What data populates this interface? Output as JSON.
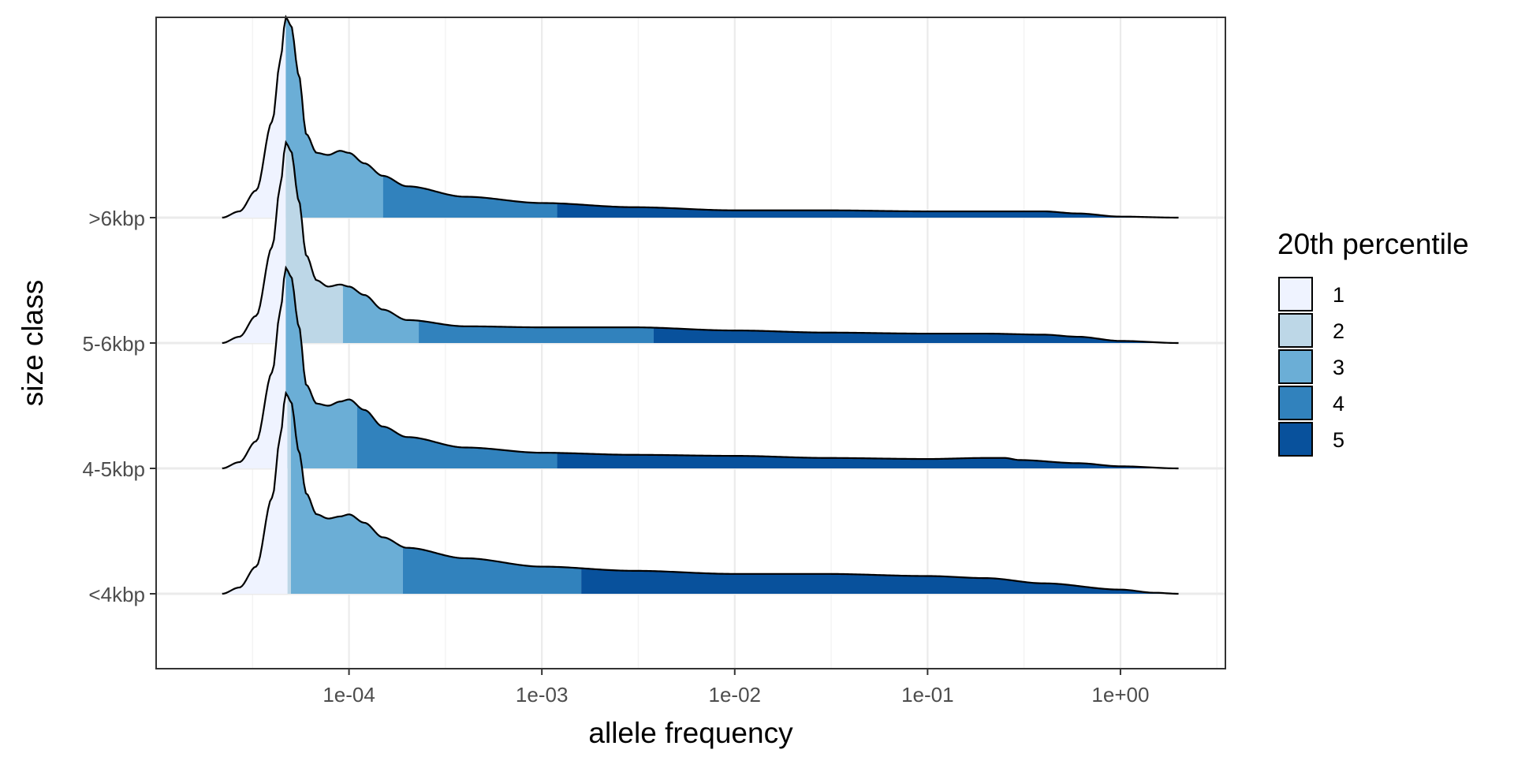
{
  "chart_data": {
    "type": "ridgeline-density",
    "title": "",
    "xlabel": "allele frequency",
    "ylabel": "size class",
    "x_scale": "log10",
    "x_ticks": [
      {
        "value": 0.0001,
        "label": "1e-04"
      },
      {
        "value": 0.001,
        "label": "1e-03"
      },
      {
        "value": 0.01,
        "label": "1e-02"
      },
      {
        "value": 0.1,
        "label": "1e-01"
      },
      {
        "value": 1,
        "label": "1e+00"
      }
    ],
    "xlim": [
      1e-05,
      3.5
    ],
    "grid": true,
    "legend": {
      "title": "20th percentile",
      "placement": "right",
      "entries": [
        {
          "label": "1",
          "color": "#eff3ff"
        },
        {
          "label": "2",
          "color": "#bdd7e7"
        },
        {
          "label": "3",
          "color": "#6baed6"
        },
        {
          "label": "4",
          "color": "#3182bd"
        },
        {
          "label": "5",
          "color": "#08519c"
        }
      ]
    },
    "categories": [
      "<4kbp",
      "4-5kbp",
      "5-6kbp",
      ">6kbp"
    ],
    "series": [
      {
        "name": "<4kbp",
        "density_points": [
          [
            2.2e-05,
            0.0
          ],
          [
            2.7e-05,
            0.03
          ],
          [
            3.3e-05,
            0.13
          ],
          [
            4e-05,
            0.46
          ],
          [
            4.4e-05,
            0.75
          ],
          [
            4.7e-05,
            0.96
          ],
          [
            5e-05,
            0.92
          ],
          [
            5.5e-05,
            0.68
          ],
          [
            6e-05,
            0.48
          ],
          [
            6.8e-05,
            0.38
          ],
          [
            7.8e-05,
            0.36
          ],
          [
            9e-05,
            0.37
          ],
          [
            0.0001,
            0.38
          ],
          [
            0.00012,
            0.34
          ],
          [
            0.00015,
            0.27
          ],
          [
            0.0002,
            0.22
          ],
          [
            0.0004,
            0.17
          ],
          [
            0.001,
            0.13
          ],
          [
            0.003,
            0.11
          ],
          [
            0.01,
            0.095
          ],
          [
            0.03,
            0.095
          ],
          [
            0.1,
            0.085
          ],
          [
            0.2,
            0.075
          ],
          [
            0.4,
            0.05
          ],
          [
            1.0,
            0.02
          ],
          [
            1.5,
            0.005
          ],
          [
            2.0,
            0.0
          ]
        ],
        "quintile_breaks": [
          4.8e-05,
          5e-05,
          0.00019,
          0.0016
        ]
      },
      {
        "name": "4-5kbp",
        "density_points": [
          [
            2.2e-05,
            0.0
          ],
          [
            2.7e-05,
            0.03
          ],
          [
            3.3e-05,
            0.13
          ],
          [
            4e-05,
            0.46
          ],
          [
            4.4e-05,
            0.75
          ],
          [
            4.7e-05,
            0.96
          ],
          [
            5e-05,
            0.92
          ],
          [
            5.5e-05,
            0.68
          ],
          [
            6e-05,
            0.4
          ],
          [
            6.8e-05,
            0.31
          ],
          [
            7.8e-05,
            0.3
          ],
          [
            9e-05,
            0.32
          ],
          [
            0.0001,
            0.33
          ],
          [
            0.00012,
            0.28
          ],
          [
            0.00015,
            0.2
          ],
          [
            0.0002,
            0.15
          ],
          [
            0.0004,
            0.1
          ],
          [
            0.001,
            0.075
          ],
          [
            0.003,
            0.065
          ],
          [
            0.01,
            0.06
          ],
          [
            0.03,
            0.05
          ],
          [
            0.1,
            0.045
          ],
          [
            0.2,
            0.05
          ],
          [
            0.25,
            0.05
          ],
          [
            0.3,
            0.04
          ],
          [
            0.6,
            0.025
          ],
          [
            1.0,
            0.01
          ],
          [
            2.0,
            0.0
          ]
        ],
        "quintile_breaks": [
          4.7e-05,
          4.7e-05,
          0.00011,
          0.0012
        ]
      },
      {
        "name": "5-6kbp",
        "density_points": [
          [
            2.2e-05,
            0.0
          ],
          [
            2.7e-05,
            0.03
          ],
          [
            3.3e-05,
            0.13
          ],
          [
            4e-05,
            0.46
          ],
          [
            4.4e-05,
            0.75
          ],
          [
            4.7e-05,
            0.96
          ],
          [
            5e-05,
            0.92
          ],
          [
            5.5e-05,
            0.68
          ],
          [
            6e-05,
            0.42
          ],
          [
            6.8e-05,
            0.3
          ],
          [
            7.8e-05,
            0.27
          ],
          [
            9e-05,
            0.28
          ],
          [
            0.0001,
            0.27
          ],
          [
            0.00012,
            0.23
          ],
          [
            0.00015,
            0.16
          ],
          [
            0.0002,
            0.11
          ],
          [
            0.0004,
            0.08
          ],
          [
            0.001,
            0.075
          ],
          [
            0.003,
            0.075
          ],
          [
            0.01,
            0.06
          ],
          [
            0.03,
            0.05
          ],
          [
            0.1,
            0.045
          ],
          [
            0.2,
            0.045
          ],
          [
            0.4,
            0.04
          ],
          [
            0.6,
            0.03
          ],
          [
            1.0,
            0.01
          ],
          [
            2.0,
            0.0
          ]
        ],
        "quintile_breaks": [
          4.7e-05,
          9.3e-05,
          0.00023,
          0.0038
        ]
      },
      {
        "name": ">6kbp",
        "density_points": [
          [
            2.2e-05,
            0.0
          ],
          [
            2.7e-05,
            0.03
          ],
          [
            3.3e-05,
            0.13
          ],
          [
            4e-05,
            0.46
          ],
          [
            4.4e-05,
            0.75
          ],
          [
            4.7e-05,
            0.96
          ],
          [
            5e-05,
            0.92
          ],
          [
            5.5e-05,
            0.68
          ],
          [
            6e-05,
            0.4
          ],
          [
            6.8e-05,
            0.31
          ],
          [
            7.8e-05,
            0.3
          ],
          [
            9e-05,
            0.32
          ],
          [
            0.0001,
            0.31
          ],
          [
            0.00012,
            0.26
          ],
          [
            0.00015,
            0.2
          ],
          [
            0.0002,
            0.15
          ],
          [
            0.0004,
            0.1
          ],
          [
            0.001,
            0.07
          ],
          [
            0.003,
            0.05
          ],
          [
            0.01,
            0.035
          ],
          [
            0.03,
            0.035
          ],
          [
            0.1,
            0.03
          ],
          [
            0.2,
            0.03
          ],
          [
            0.4,
            0.03
          ],
          [
            0.6,
            0.02
          ],
          [
            1.0,
            0.005
          ],
          [
            2.0,
            0.0
          ]
        ],
        "quintile_breaks": [
          4.7e-05,
          4.7e-05,
          0.00015,
          0.0012
        ]
      }
    ]
  }
}
